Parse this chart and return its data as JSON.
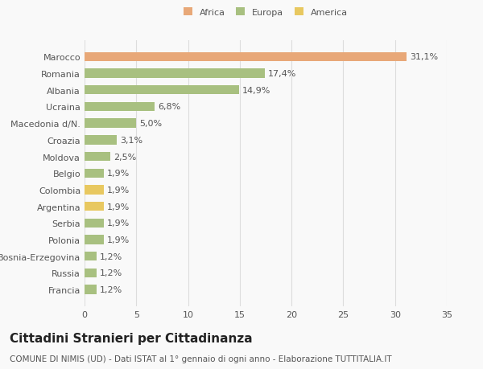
{
  "categories": [
    "Francia",
    "Russia",
    "Bosnia-Erzegovina",
    "Polonia",
    "Serbia",
    "Argentina",
    "Colombia",
    "Belgio",
    "Moldova",
    "Croazia",
    "Macedonia d/N.",
    "Ucraina",
    "Albania",
    "Romania",
    "Marocco"
  ],
  "values": [
    1.2,
    1.2,
    1.2,
    1.9,
    1.9,
    1.9,
    1.9,
    1.9,
    2.5,
    3.1,
    5.0,
    6.8,
    14.9,
    17.4,
    31.1
  ],
  "labels": [
    "1,2%",
    "1,2%",
    "1,2%",
    "1,9%",
    "1,9%",
    "1,9%",
    "1,9%",
    "1,9%",
    "2,5%",
    "3,1%",
    "5,0%",
    "6,8%",
    "14,9%",
    "17,4%",
    "31,1%"
  ],
  "colors": [
    "#a8c080",
    "#a8c080",
    "#a8c080",
    "#a8c080",
    "#a8c080",
    "#e8c860",
    "#e8c860",
    "#a8c080",
    "#a8c080",
    "#a8c080",
    "#a8c080",
    "#a8c080",
    "#a8c080",
    "#a8c080",
    "#e8a878"
  ],
  "legend_labels": [
    "Africa",
    "Europa",
    "America"
  ],
  "legend_colors": [
    "#e8a878",
    "#a8c080",
    "#e8c860"
  ],
  "title": "Cittadini Stranieri per Cittadinanza",
  "subtitle": "COMUNE DI NIMIS (UD) - Dati ISTAT al 1° gennaio di ogni anno - Elaborazione TUTTITALIA.IT",
  "xlim": [
    0,
    35
  ],
  "xticks": [
    0,
    5,
    10,
    15,
    20,
    25,
    30,
    35
  ],
  "background_color": "#f9f9f9",
  "bar_height": 0.55,
  "grid_color": "#dddddd",
  "label_fontsize": 8,
  "tick_fontsize": 8,
  "title_fontsize": 11,
  "subtitle_fontsize": 7.5,
  "text_color": "#555555",
  "title_color": "#222222"
}
